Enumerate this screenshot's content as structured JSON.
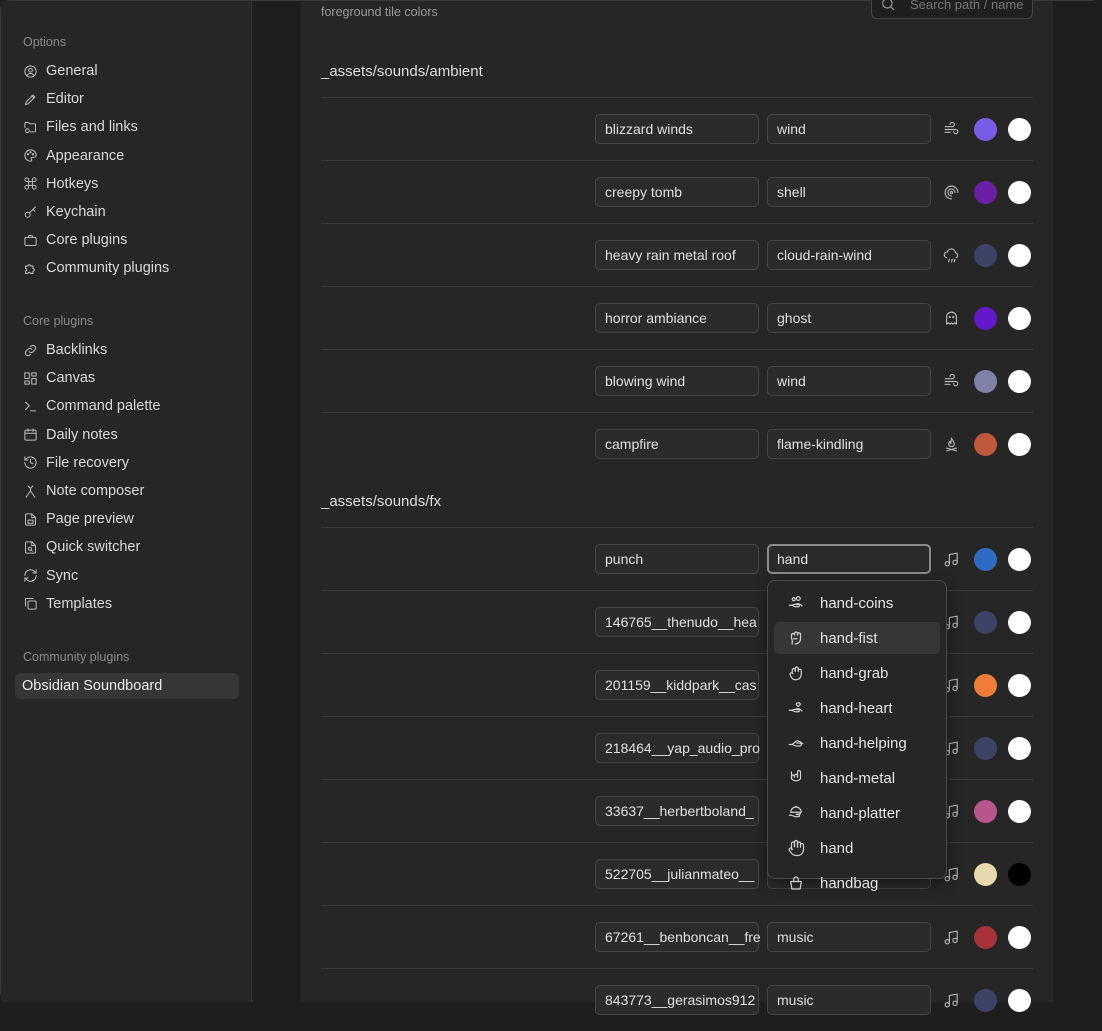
{
  "sidebar": {
    "options_title": "Options",
    "options": [
      {
        "label": "General",
        "icon": "user-circle-icon"
      },
      {
        "label": "Editor",
        "icon": "pencil-icon"
      },
      {
        "label": "Files and links",
        "icon": "folder-cog-icon"
      },
      {
        "label": "Appearance",
        "icon": "palette-icon"
      },
      {
        "label": "Hotkeys",
        "icon": "command-icon"
      },
      {
        "label": "Keychain",
        "icon": "key-icon"
      },
      {
        "label": "Core plugins",
        "icon": "briefcase-icon"
      },
      {
        "label": "Community plugins",
        "icon": "puzzle-icon"
      }
    ],
    "core_title": "Core plugins",
    "core": [
      {
        "label": "Backlinks",
        "icon": "link-icon"
      },
      {
        "label": "Canvas",
        "icon": "layout-dashboard-icon"
      },
      {
        "label": "Command palette",
        "icon": "terminal-icon"
      },
      {
        "label": "Daily notes",
        "icon": "calendar-icon"
      },
      {
        "label": "File recovery",
        "icon": "history-icon"
      },
      {
        "label": "Note composer",
        "icon": "merge-icon"
      },
      {
        "label": "Page preview",
        "icon": "page-preview-icon"
      },
      {
        "label": "Quick switcher",
        "icon": "file-search-icon"
      },
      {
        "label": "Sync",
        "icon": "refresh-icon"
      },
      {
        "label": "Templates",
        "icon": "copy-icon"
      }
    ],
    "community_title": "Community plugins",
    "community": [
      {
        "label": "Obsidian Soundboard"
      }
    ]
  },
  "main": {
    "description": "foreground tile colors",
    "search_placeholder": "Search path / name",
    "folders": [
      {
        "path": "_assets/sounds/ambient",
        "rows": [
          {
            "name": "blizzard winds",
            "icon_name": "wind",
            "icon": "wind-icon",
            "bg": "#7b5ce8",
            "fg": "#ffffff"
          },
          {
            "name": "creepy tomb",
            "icon_name": "shell",
            "icon": "shell-icon",
            "bg": "#6a1fa5",
            "fg": "#ffffff"
          },
          {
            "name": "heavy rain metal roof",
            "icon_name": "cloud-rain-wind",
            "icon": "cloud-rain-wind-icon",
            "bg": "#3d4366",
            "fg": "#ffffff"
          },
          {
            "name": "horror ambiance",
            "icon_name": "ghost",
            "icon": "ghost-icon",
            "bg": "#6318c9",
            "fg": "#ffffff"
          },
          {
            "name": "blowing wind",
            "icon_name": "wind",
            "icon": "wind-icon",
            "bg": "#7e82a8",
            "fg": "#ffffff"
          },
          {
            "name": "campfire",
            "icon_name": "flame-kindling",
            "icon": "flame-kindling-icon",
            "bg": "#c0583c",
            "fg": "#ffffff"
          }
        ]
      },
      {
        "path": "_assets/sounds/fx",
        "rows": [
          {
            "name": "punch",
            "icon_name": "hand",
            "icon": "music-icon",
            "bg": "#2f6bc4",
            "fg": "#ffffff",
            "focused": true
          },
          {
            "name": "146765__thenudo__hea",
            "icon_name": "",
            "icon": "music-icon",
            "bg": "#3d4366",
            "fg": "#ffffff"
          },
          {
            "name": "201159__kiddpark__cas",
            "icon_name": "",
            "icon": "music-icon",
            "bg": "#ef7d38",
            "fg": "#ffffff"
          },
          {
            "name": "218464__yap_audio_pro",
            "icon_name": "",
            "icon": "music-icon",
            "bg": "#3d4366",
            "fg": "#ffffff"
          },
          {
            "name": "33637__herbertboland_",
            "icon_name": "",
            "icon": "music-icon",
            "bg": "#b8558d",
            "fg": "#ffffff"
          },
          {
            "name": "522705__julianmateo__",
            "icon_name": "",
            "icon": "music-icon",
            "bg": "#e8d8ad",
            "fg": "#000000"
          },
          {
            "name": "67261__benboncan__fre",
            "icon_name": "music",
            "icon": "music-icon",
            "bg": "#a8323c",
            "fg": "#ffffff"
          },
          {
            "name": "843773__gerasimos912",
            "icon_name": "music",
            "icon": "music-icon",
            "bg": "#3d4366",
            "fg": "#ffffff"
          }
        ]
      }
    ],
    "dropdown": {
      "items": [
        {
          "label": "hand-coins",
          "icon": "hand-coins-icon"
        },
        {
          "label": "hand-fist",
          "icon": "hand-fist-icon",
          "highlighted": true
        },
        {
          "label": "hand-grab",
          "icon": "hand-grab-icon"
        },
        {
          "label": "hand-heart",
          "icon": "hand-heart-icon"
        },
        {
          "label": "hand-helping",
          "icon": "hand-helping-icon"
        },
        {
          "label": "hand-metal",
          "icon": "hand-metal-icon"
        },
        {
          "label": "hand-platter",
          "icon": "hand-platter-icon"
        },
        {
          "label": "hand",
          "icon": "hand-icon"
        },
        {
          "label": "handbag",
          "icon": "handbag-icon"
        }
      ]
    }
  }
}
